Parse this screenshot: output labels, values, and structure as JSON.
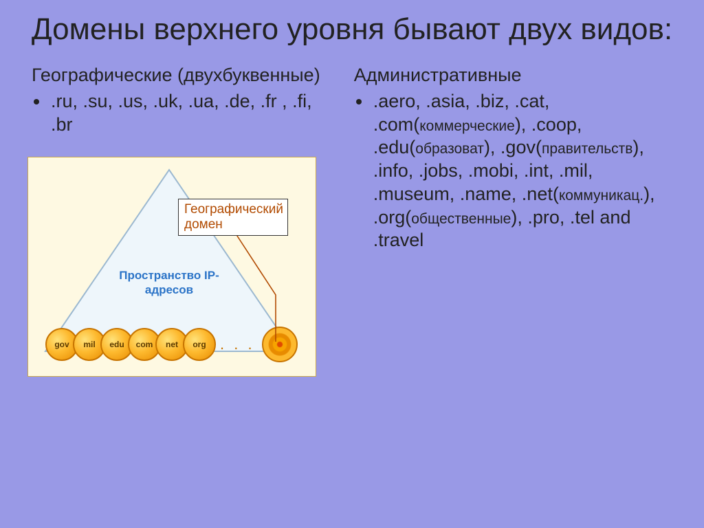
{
  "title": "Домены верхнего уровня бывают двух видов:",
  "left": {
    "heading": "Географические (двухбуквенные)",
    "bullet": ".ru, .su, .us, .uk, .ua, .de, .fr , .fi, .br"
  },
  "right": {
    "heading": "Административные",
    "bullet_html": ".aero, .asia, .biz, .cat, .com(<span class='small' data-bind='right.notes.com'></span>), .coop, .edu(<span class='small' data-bind='right.notes.edu'></span>), .gov(<span class='small' data-bind='right.notes.gov'></span>), .info, .jobs, .mobi, .int, .mil, .museum, .name, .net(<span class='small' data-bind='right.notes.net'></span>), .org(<span class='small' data-bind='right.notes.org'></span>), .pro, .tel and .travel",
    "notes": {
      "com": "коммерческие",
      "edu": "образоват",
      "gov": "правительств",
      "net": "коммуникац.",
      "org": "общественные"
    }
  },
  "diagram": {
    "callout": "Географический домен",
    "pyramid_label": "Пространство IP-адресов",
    "circle_labels": [
      "gov",
      "mil",
      "edu",
      "com",
      "net",
      "org"
    ],
    "colors": {
      "background": "#fef9e2",
      "border": "#c9a84f",
      "pyramid_fill": "#eef6fb",
      "pyramid_stroke": "#9bb8d0",
      "pyramid_label": "#2a73c7",
      "circle_grad_inner": "#ffe27a",
      "circle_grad_mid": "#fdb92e",
      "circle_grad_outer": "#e88b00",
      "circle_border": "#c77400",
      "circle_text": "#5b3a00",
      "callout_text": "#b14a00",
      "callout_line": "#b14a00"
    }
  },
  "page_background": "#9999e6"
}
